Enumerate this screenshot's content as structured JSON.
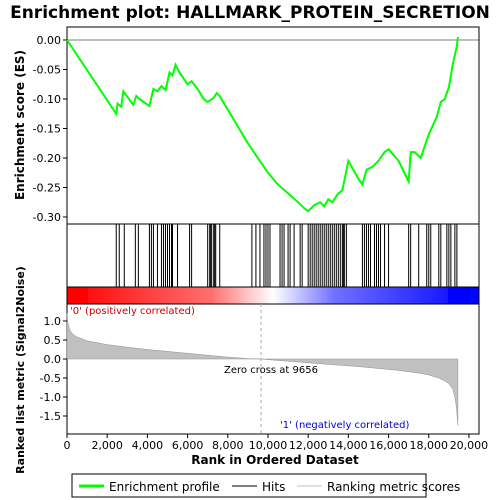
{
  "chart_data": {
    "type": "line",
    "title": "Enrichment plot: HALLMARK_PROTEIN_SECRETION",
    "xlabel": "Rank in Ordered Dataset",
    "ylabel_top": "Enrichment score (ES)",
    "ylabel_bottom": "Ranked list metric (Signal2Noise)",
    "xlim": [
      0,
      20500
    ],
    "x_ticks": [
      0,
      2000,
      4000,
      6000,
      8000,
      10000,
      12000,
      14000,
      16000,
      18000,
      20000
    ],
    "x_tick_labels": [
      "0",
      "2,000",
      "4,000",
      "6,000",
      "8,000",
      "10,000",
      "12,000",
      "14,000",
      "16,000",
      "18,000",
      "20,000"
    ],
    "es_ylim": [
      -0.3,
      0.0
    ],
    "es_ticks": [
      0.0,
      -0.05,
      -0.1,
      -0.15,
      -0.2,
      -0.25,
      -0.3
    ],
    "es_tick_labels": [
      "0.00",
      "-0.05",
      "-0.10",
      "-0.15",
      "-0.20",
      "-0.25",
      "-0.30"
    ],
    "metric_ylim": [
      -1.75,
      1.25
    ],
    "metric_ticks": [
      1.0,
      0.5,
      0.0,
      -0.5,
      -1.0,
      -1.5
    ],
    "metric_tick_labels": [
      "1.0",
      "0.5",
      "0.0",
      "-0.5",
      "-1.0",
      "-1.5"
    ],
    "series": [
      {
        "name": "Enrichment profile",
        "color": "#00ff00",
        "x": [
          0,
          2450,
          2520,
          2700,
          2800,
          3300,
          3450,
          3600,
          4100,
          4300,
          4500,
          4700,
          4900,
          5100,
          5250,
          5400,
          5600,
          6000,
          6200,
          6500,
          6800,
          7000,
          7300,
          7450,
          7600,
          9000,
          10000,
          10500,
          11000,
          11500,
          11800,
          12000,
          12300,
          12600,
          12800,
          13000,
          13200,
          13500,
          13700,
          14000,
          14500,
          14700,
          14900,
          15200,
          15500,
          15800,
          16000,
          16500,
          17000,
          17100,
          17300,
          17600,
          17800,
          18000,
          18200,
          18400,
          18600,
          18800,
          19000,
          19100,
          19200,
          19300,
          19400,
          19450
        ],
        "y": [
          0.0,
          -0.125,
          -0.108,
          -0.113,
          -0.087,
          -0.11,
          -0.095,
          -0.1,
          -0.112,
          -0.083,
          -0.087,
          -0.078,
          -0.085,
          -0.055,
          -0.06,
          -0.042,
          -0.055,
          -0.075,
          -0.07,
          -0.083,
          -0.1,
          -0.105,
          -0.098,
          -0.09,
          -0.095,
          -0.175,
          -0.225,
          -0.245,
          -0.26,
          -0.275,
          -0.285,
          -0.29,
          -0.28,
          -0.275,
          -0.282,
          -0.27,
          -0.275,
          -0.26,
          -0.255,
          -0.205,
          -0.235,
          -0.245,
          -0.22,
          -0.215,
          -0.205,
          -0.19,
          -0.185,
          -0.205,
          -0.24,
          -0.19,
          -0.19,
          -0.2,
          -0.18,
          -0.16,
          -0.145,
          -0.13,
          -0.105,
          -0.1,
          -0.08,
          -0.06,
          -0.04,
          -0.025,
          -0.01,
          0.005
        ]
      }
    ],
    "hits": [
      2450,
      2600,
      2850,
      3400,
      3550,
      4100,
      4200,
      4300,
      4500,
      4700,
      4800,
      4900,
      5000,
      5100,
      5200,
      5250,
      5500,
      6100,
      6200,
      7000,
      7100,
      7150,
      7200,
      7300,
      7350,
      7400,
      7600,
      9200,
      9400,
      9600,
      9800,
      9900,
      10000,
      10100,
      10600,
      10700,
      10800,
      11000,
      11100,
      11300,
      11600,
      11700,
      12000,
      12100,
      12200,
      12300,
      12400,
      12500,
      12600,
      12700,
      12800,
      12900,
      13000,
      13100,
      13200,
      13300,
      13400,
      13500,
      13600,
      13700,
      13750,
      13800,
      13900,
      14700,
      14800,
      14900,
      15000,
      15100,
      15300,
      15400,
      15500,
      15600,
      15800,
      16000,
      17000,
      17100,
      17500,
      17900,
      18000,
      18100,
      18500,
      18600,
      18900,
      19000,
      19100,
      19300,
      19400
    ],
    "metric_curve": {
      "x": [
        0,
        50,
        150,
        300,
        500,
        800,
        1000,
        2000,
        3000,
        4000,
        5000,
        6000,
        7000,
        8000,
        9000,
        9656,
        10500,
        11500,
        12500,
        13500,
        14500,
        15500,
        16500,
        17500,
        18000,
        18500,
        18800,
        19000,
        19200,
        19300,
        19380,
        19450
      ],
      "y": [
        1.2,
        0.95,
        0.75,
        0.65,
        0.58,
        0.52,
        0.48,
        0.38,
        0.31,
        0.25,
        0.2,
        0.15,
        0.1,
        0.05,
        0.01,
        0.0,
        -0.04,
        -0.08,
        -0.12,
        -0.16,
        -0.2,
        -0.25,
        -0.3,
        -0.37,
        -0.42,
        -0.5,
        -0.58,
        -0.65,
        -0.8,
        -1.0,
        -1.3,
        -1.75
      ]
    },
    "zero_cross_label": "Zero cross at 9656",
    "zero_cross_x": 9656,
    "pos_label": "'0' (positively correlated)",
    "neg_label": "'1' (negatively correlated)",
    "legend": {
      "position": "bottom",
      "items": [
        "Enrichment profile",
        "Hits",
        "Ranking metric scores"
      ]
    },
    "colors": {
      "es_line": "#00ff00",
      "metric_fill": "#c0c0c0",
      "pos_color": "#ff0000",
      "neg_color": "#0000ff",
      "mid_color": "#ffffff"
    },
    "grid": false
  }
}
